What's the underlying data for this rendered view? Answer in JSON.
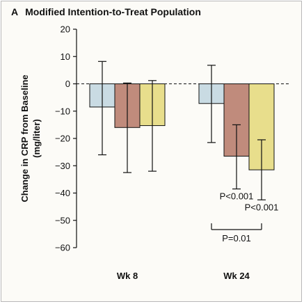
{
  "panel": {
    "letter": "A",
    "title": "Modified Intention-to-Treat Population"
  },
  "chart_data": {
    "type": "bar",
    "title": "Modified Intention-to-Treat Population",
    "ylabel_line1": "Change in CRP from Baseline",
    "ylabel_line2": "(mg/liter)",
    "xlabel": "",
    "categories": [
      "Wk 8",
      "Wk 24"
    ],
    "ylim": [
      -60,
      20
    ],
    "yticks": [
      20,
      10,
      0,
      -10,
      -20,
      -30,
      -40,
      -50,
      -60
    ],
    "zero_line": "dashed",
    "grid": false,
    "legend": "none",
    "colors": [
      "#c9dbe3",
      "#c08b7c",
      "#e8de8c"
    ],
    "series": [
      {
        "values": [
          -8.5,
          -7.2
        ],
        "err_low": [
          -26,
          -21.5
        ],
        "err_high": [
          8.2,
          6.8
        ]
      },
      {
        "values": [
          -16,
          -26.5
        ],
        "err_low": [
          -32.5,
          -38.5
        ],
        "err_high": [
          0.3,
          -15
        ]
      },
      {
        "values": [
          -15.3,
          -31.5
        ],
        "err_low": [
          -32,
          -42.5
        ],
        "err_high": [
          1.2,
          -20.5
        ]
      }
    ],
    "annotations": [
      {
        "text": "P<0.001",
        "category": 1,
        "series": 1
      },
      {
        "text": "P<0.001",
        "category": 1,
        "series": 2
      },
      {
        "text": "P=0.01",
        "type": "bracket",
        "category": 1,
        "from_series": 0,
        "to_series": 2
      }
    ]
  }
}
